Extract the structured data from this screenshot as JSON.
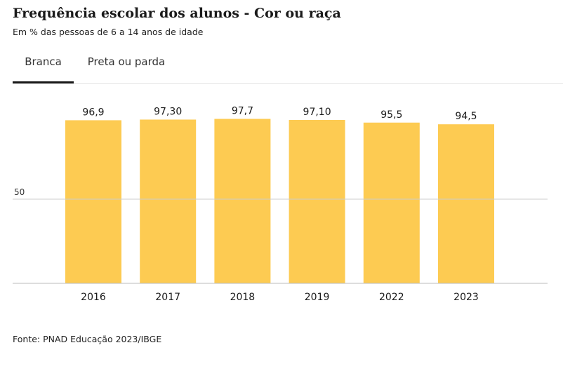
{
  "title": "Frequência escolar dos alunos - Cor ou raça",
  "subtitle": "Em % das pessoas de 6 a 14 anos de idade",
  "tabs": [
    {
      "label": "Branca",
      "active": true
    },
    {
      "label": "Preta ou parda",
      "active": false
    }
  ],
  "source": "Fonte: PNAD Educação 2023/IBGE",
  "colors": {
    "bar": "#FDCB52",
    "gridline": "#cccccc",
    "baseline": "#bbbbbb",
    "text": "#1a1a1a",
    "tab_underline": "#1a1a1a"
  },
  "chart_data": {
    "type": "bar",
    "categories": [
      "2016",
      "2017",
      "2018",
      "2019",
      "2022",
      "2023"
    ],
    "values": [
      96.9,
      97.3,
      97.7,
      97.1,
      95.5,
      94.5
    ],
    "value_labels": [
      "96,9",
      "97,30",
      "97,7",
      "97,10",
      "95,5",
      "94,5"
    ],
    "ylim": [
      0,
      100
    ],
    "yticks": [
      {
        "value": 50,
        "label": "50"
      }
    ],
    "grid": true,
    "legend": "none"
  }
}
